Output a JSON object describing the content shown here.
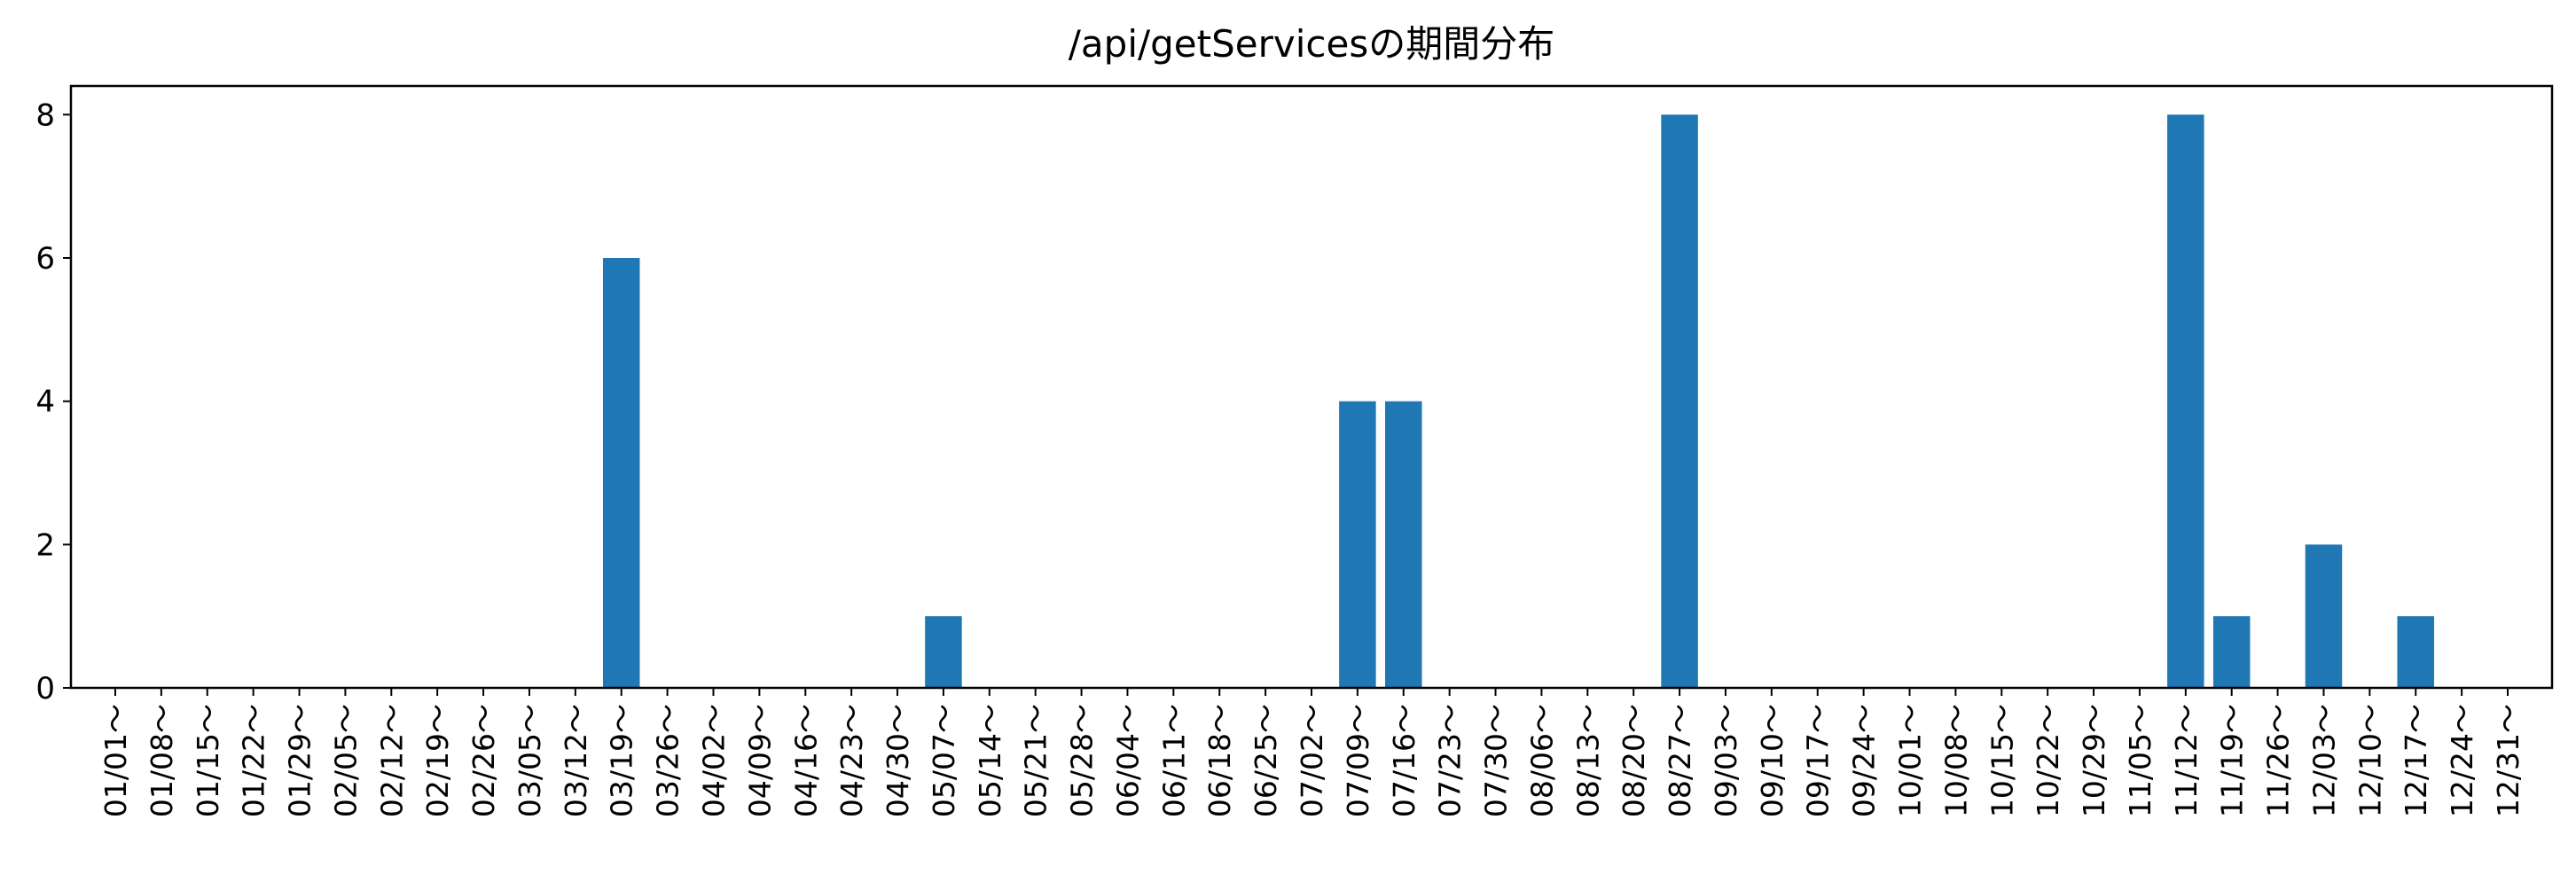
{
  "chart_data": {
    "type": "bar",
    "title": "/api/getServicesの期間分布",
    "xlabel": "",
    "ylabel": "",
    "ylim": [
      0,
      8.4
    ],
    "yticks": [
      0,
      2,
      4,
      6,
      8
    ],
    "grid": false,
    "bar_color": "#1f77b4",
    "categories": [
      "01/01～",
      "01/08～",
      "01/15～",
      "01/22～",
      "01/29～",
      "02/05～",
      "02/12～",
      "02/19～",
      "02/26～",
      "03/05～",
      "03/12～",
      "03/19～",
      "03/26～",
      "04/02～",
      "04/09～",
      "04/16～",
      "04/23～",
      "04/30～",
      "05/07～",
      "05/14～",
      "05/21～",
      "05/28～",
      "06/04～",
      "06/11～",
      "06/18～",
      "06/25～",
      "07/02～",
      "07/09～",
      "07/16～",
      "07/23～",
      "07/30～",
      "08/06～",
      "08/13～",
      "08/20～",
      "08/27～",
      "09/03～",
      "09/10～",
      "09/17～",
      "09/24～",
      "10/01～",
      "10/08～",
      "10/15～",
      "10/22～",
      "10/29～",
      "11/05～",
      "11/12～",
      "11/19～",
      "11/26～",
      "12/03～",
      "12/10～",
      "12/17～",
      "12/24～",
      "12/31～"
    ],
    "values": [
      0,
      0,
      0,
      0,
      0,
      0,
      0,
      0,
      0,
      0,
      0,
      6,
      0,
      0,
      0,
      0,
      0,
      0,
      1,
      0,
      0,
      0,
      0,
      0,
      0,
      0,
      0,
      4,
      4,
      0,
      0,
      0,
      0,
      0,
      8,
      0,
      0,
      0,
      0,
      0,
      0,
      0,
      0,
      0,
      0,
      8,
      1,
      0,
      2,
      0,
      1,
      0,
      0
    ]
  }
}
